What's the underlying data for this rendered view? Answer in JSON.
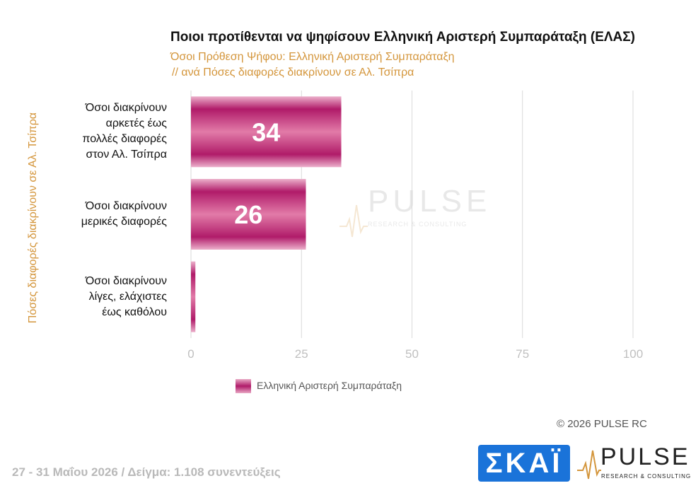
{
  "header": {
    "title": "Ποιοι προτίθενται να ψηφίσουν Ελληνική Αριστερή Συμπαράταξη (ΕΛΑΣ)",
    "subtitle_line1": "Όσοι Πρόθεση Ψήφου: Ελληνική Αριστερή Συμπαράταξη",
    "subtitle_line2": "// ανά Πόσες διαφορές διακρίνουν σε Αλ. Τσίπρα"
  },
  "chart_data": {
    "type": "bar",
    "orientation": "horizontal",
    "ylabel": "Πόσες διαφορές διακρίνουν σε Αλ. Τσίπρα",
    "categories": [
      [
        "Όσοι διακρίνουν",
        "αρκετές έως",
        "πολλές διαφορές",
        "στον Αλ. Τσίπρα"
      ],
      [
        "Όσοι διακρίνουν",
        "μερικές διαφορές"
      ],
      [
        "Όσοι διακρίνουν",
        "λίγες, ελάχιστες",
        "έως καθόλου"
      ]
    ],
    "series": [
      {
        "name": "Ελληνική Αριστερή Συμπαράταξη",
        "values": [
          34,
          26,
          1
        ],
        "data_labels": [
          "34",
          "26",
          ""
        ]
      }
    ],
    "xlim": [
      0,
      100
    ],
    "xticks": [
      0,
      25,
      50,
      75,
      100
    ],
    "grid": true,
    "legend_position": "bottom",
    "colors": {
      "bar_dark": "#b01b69",
      "bar_light": "#ecb0cb",
      "accent_text": "#d4963c"
    }
  },
  "legend": {
    "label": "Ελληνική Αριστερή Συμπαράταξη"
  },
  "watermark": {
    "name": "PULSE",
    "sub": "RESEARCH & CONSULTING"
  },
  "footer": {
    "copyright": "© 2026 PULSE RC",
    "fieldwork": "27 - 31 Μαΐου 2026 / Δείγμα: 1.108 συνεντεύξεις"
  },
  "logos": {
    "skai": "ΣΚΑΪ",
    "pulse_name": "PULSE",
    "pulse_sub": "RESEARCH & CONSULTING"
  }
}
